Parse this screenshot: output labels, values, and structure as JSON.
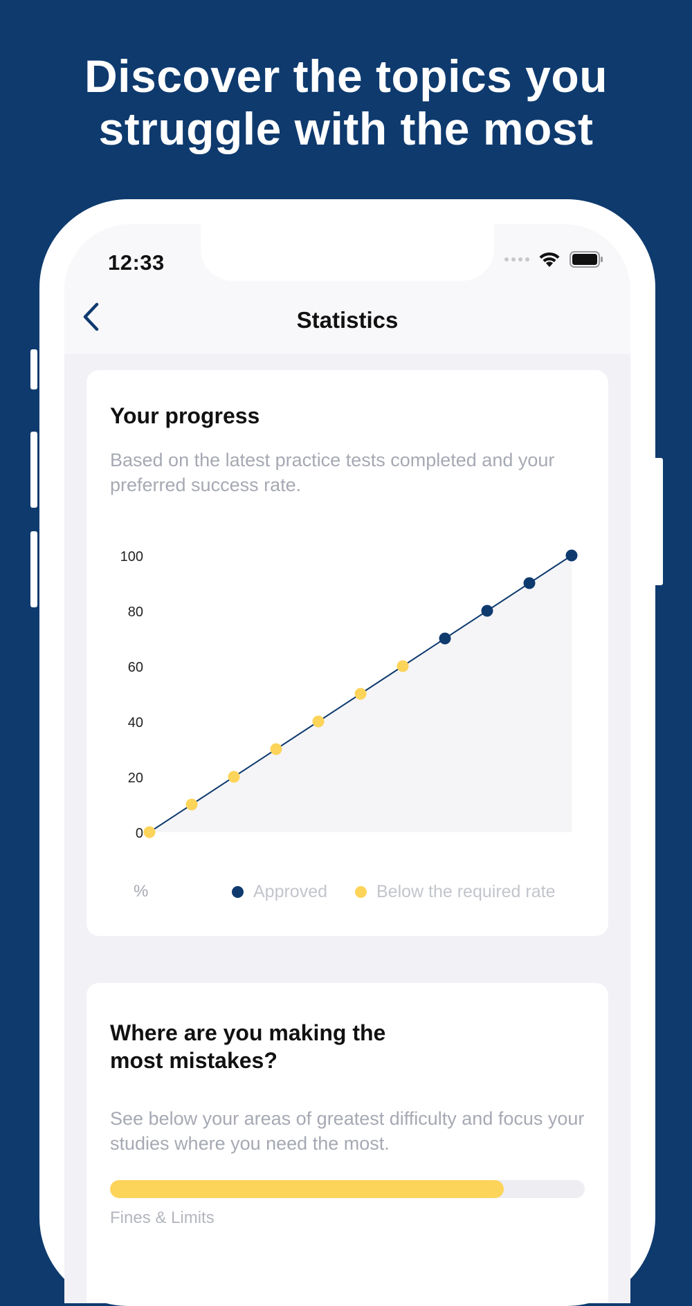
{
  "headline": {
    "line1": "Discover the topics you",
    "line2": "struggle with the most"
  },
  "status_bar": {
    "time": "12:33"
  },
  "navbar": {
    "title": "Statistics",
    "back_icon": "chevron-left-icon"
  },
  "progress_card": {
    "title": "Your progress",
    "description": "Based on the latest practice tests completed and your preferred success rate."
  },
  "chart_data": {
    "type": "line",
    "x": [
      0,
      1,
      2,
      3,
      4,
      5,
      6,
      7,
      8,
      9,
      10
    ],
    "values": [
      0,
      10,
      20,
      30,
      40,
      50,
      60,
      70,
      80,
      90,
      100
    ],
    "status": [
      "below",
      "below",
      "below",
      "below",
      "below",
      "below",
      "below",
      "approved",
      "approved",
      "approved",
      "approved"
    ],
    "yticks": [
      "0",
      "20",
      "40",
      "60",
      "80",
      "100"
    ],
    "ylim": [
      0,
      100
    ],
    "unit_label": "%",
    "legend": [
      {
        "label": "Approved",
        "color": "#0e3a6e"
      },
      {
        "label": "Below the required rate",
        "color": "#fdd45a"
      }
    ],
    "line_color": "#0e3a6e",
    "area_color": "#f5f5f7"
  },
  "mistakes_card": {
    "title_line1": "Where are you making the",
    "title_line2": "most mistakes?",
    "description": "See below your areas of greatest difficulty and focus your studies where you need the most.",
    "topics": [
      {
        "label": "Fines & Limits",
        "progress": 0.83
      }
    ]
  },
  "colors": {
    "brand": "#0e3a6e",
    "warning": "#fdd45a"
  }
}
